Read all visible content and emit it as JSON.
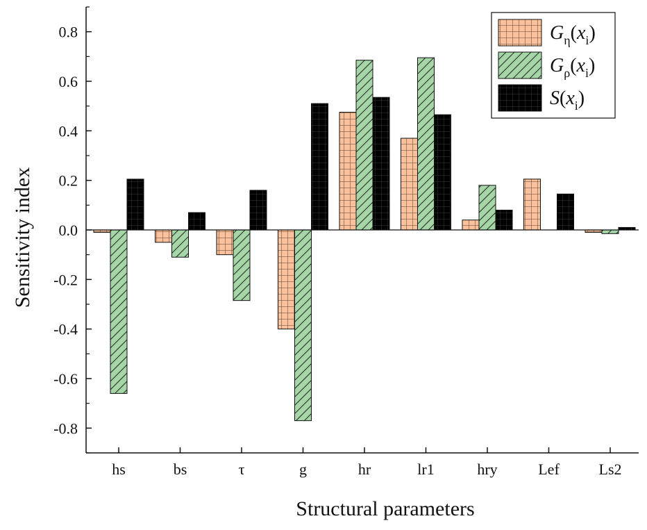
{
  "chart_data": {
    "type": "bar",
    "xlabel": "Structural parameters",
    "ylabel": "Sensitivity index",
    "ylim": [
      -0.9,
      0.9
    ],
    "yticks": [
      -0.8,
      -0.6,
      -0.4,
      -0.2,
      0.0,
      0.2,
      0.4,
      0.6,
      0.8
    ],
    "ytick_labels": [
      "-0.8",
      "-0.6",
      "-0.4",
      "-0.2",
      "0.0",
      "0.2",
      "0.4",
      "0.6",
      "0.8"
    ],
    "categories": [
      "hs",
      "bs",
      "τ",
      "g",
      "hr",
      "lr1",
      "hry",
      "Lef",
      "Ls2"
    ],
    "legend_position": "top-right",
    "grid": false,
    "series": [
      {
        "name": "Gη(xi)",
        "legend": {
          "main": "G",
          "sub": "η",
          "paren_open": "(x",
          "sub2": "i",
          "paren_close": ")"
        },
        "color": "#f9c29d",
        "hatch": "grid",
        "values": [
          -0.01,
          -0.05,
          -0.1,
          -0.4,
          0.475,
          0.37,
          0.04,
          0.205,
          -0.01
        ]
      },
      {
        "name": "Gρ(xi)",
        "legend": {
          "main": "G",
          "sub": "ρ",
          "paren_open": "(x",
          "sub2": "i",
          "paren_close": ")"
        },
        "color": "#a6d6a7",
        "hatch": "diagonal",
        "values": [
          -0.66,
          -0.11,
          -0.285,
          -0.77,
          0.685,
          0.695,
          0.18,
          0.0,
          -0.015
        ]
      },
      {
        "name": "S(xi)",
        "legend": {
          "main": "S",
          "sub": "",
          "paren_open": "(x",
          "sub2": "i",
          "paren_close": ")"
        },
        "color": "#000000",
        "hatch": "grid-dark",
        "values": [
          0.205,
          0.07,
          0.16,
          0.51,
          0.535,
          0.465,
          0.08,
          0.145,
          0.01
        ]
      }
    ]
  }
}
